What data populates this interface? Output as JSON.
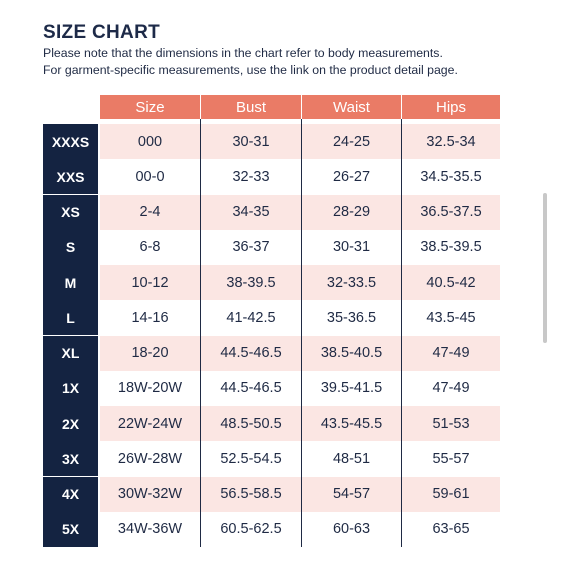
{
  "title": "SIZE CHART",
  "note_line1": "Please note that the dimensions in the chart refer to body measurements.",
  "note_line2": "For garment-specific measurements, use the link on the product detail page.",
  "colors": {
    "header_bg": "#ea7b66",
    "size_label_bg": "#142341",
    "row_pink": "#fbe6e3",
    "text": "#1f2a44"
  },
  "columns": [
    "Size",
    "Bust",
    "Waist",
    "Hips"
  ],
  "rows": [
    {
      "label": "XXXS",
      "cells": [
        "000",
        "30-31",
        "24-25",
        "32.5-34"
      ]
    },
    {
      "label": "XXS",
      "cells": [
        "00-0",
        "32-33",
        "26-27",
        "34.5-35.5"
      ]
    },
    {
      "label": "XS",
      "cells": [
        "2-4",
        "34-35",
        "28-29",
        "36.5-37.5"
      ]
    },
    {
      "label": "S",
      "cells": [
        "6-8",
        "36-37",
        "30-31",
        "38.5-39.5"
      ]
    },
    {
      "label": "M",
      "cells": [
        "10-12",
        "38-39.5",
        "32-33.5",
        "40.5-42"
      ]
    },
    {
      "label": "L",
      "cells": [
        "14-16",
        "41-42.5",
        "35-36.5",
        "43.5-45"
      ]
    },
    {
      "label": "XL",
      "cells": [
        "18-20",
        "44.5-46.5",
        "38.5-40.5",
        "47-49"
      ]
    },
    {
      "label": "1X",
      "cells": [
        "18W-20W",
        "44.5-46.5",
        "39.5-41.5",
        "47-49"
      ]
    },
    {
      "label": "2X",
      "cells": [
        "22W-24W",
        "48.5-50.5",
        "43.5-45.5",
        "51-53"
      ]
    },
    {
      "label": "3X",
      "cells": [
        "26W-28W",
        "52.5-54.5",
        "48-51",
        "55-57"
      ]
    },
    {
      "label": "4X",
      "cells": [
        "30W-32W",
        "56.5-58.5",
        "54-57",
        "59-61"
      ]
    },
    {
      "label": "5X",
      "cells": [
        "34W-36W",
        "60.5-62.5",
        "60-63",
        "63-65"
      ]
    }
  ]
}
